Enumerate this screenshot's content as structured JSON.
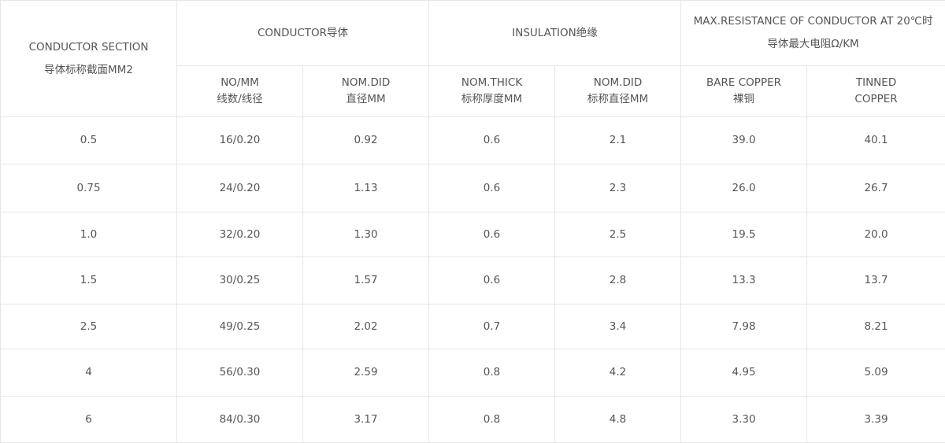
{
  "header": {
    "conductor_section": {
      "line1": "CONDUCTOR SECTION",
      "line2": "导体标称截面MM2"
    },
    "conductor": "CONDUCTOR导体",
    "insulation": "INSULATION绝缘",
    "max_resistance": {
      "line1": "MAX.RESISTANCE OF CONDUCTOR AT 20℃时",
      "line2": "导体最大电阻Ω/KM"
    },
    "sub": {
      "no_mm": {
        "line1": "NO/MM",
        "line2": "线数/线径"
      },
      "nom_did_conductor": {
        "line1": "NOM.DID",
        "line2": "直径MM"
      },
      "nom_thick": {
        "line1": "NOM.THICK",
        "line2": "标称厚度MM"
      },
      "nom_did_insulation": {
        "line1": "NOM.DID",
        "line2": "标称直径MM"
      },
      "bare_copper": {
        "line1": "BARE COPPER",
        "line2": "裸铜"
      },
      "tinned_copper": {
        "line1": "TINNED",
        "line2": "COPPER"
      }
    }
  },
  "rows": [
    [
      "0.5",
      "16/0.20",
      "0.92",
      "0.6",
      "2.1",
      "39.0",
      "40.1"
    ],
    [
      "0.75",
      "24/0.20",
      "1.13",
      "0.6",
      "2.3",
      "26.0",
      "26.7"
    ],
    [
      "1.0",
      "32/0.20",
      "1.30",
      "0.6",
      "2.5",
      "19.5",
      "20.0"
    ],
    [
      "1.5",
      "30/0.25",
      "1.57",
      "0.6",
      "2.8",
      "13.3",
      "13.7"
    ],
    [
      "2.5",
      "49/0.25",
      "2.02",
      "0.7",
      "3.4",
      "7.98",
      "8.21"
    ],
    [
      "4",
      "56/0.30",
      "2.59",
      "0.8",
      "4.2",
      "4.95",
      "5.09"
    ],
    [
      "6",
      "84/0.30",
      "3.17",
      "0.8",
      "4.8",
      "3.30",
      "3.39"
    ]
  ]
}
